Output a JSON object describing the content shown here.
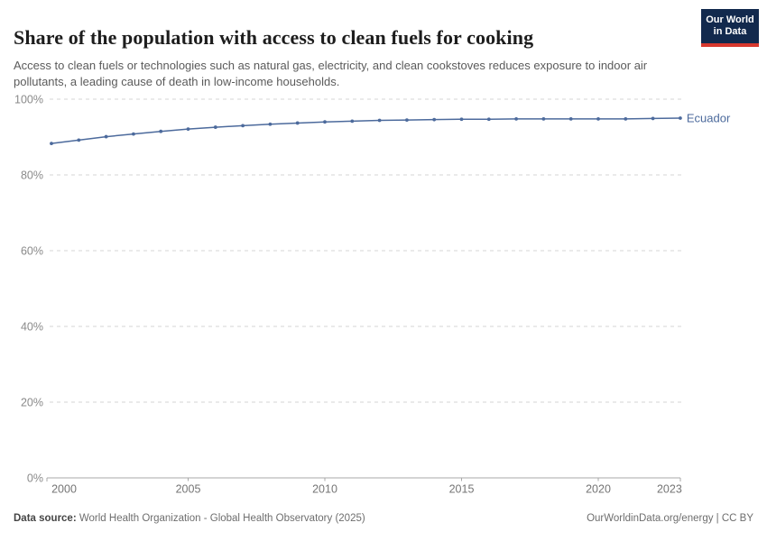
{
  "header": {
    "title": "Share of the population with access to clean fuels for cooking",
    "subtitle": "Access to clean fuels or technologies such as natural gas, electricity, and clean cookstoves reduces exposure to indoor air pollutants, a leading cause of death in low-income households.",
    "logo": {
      "line1": "Our World",
      "line2": "in Data"
    }
  },
  "chart_data": {
    "type": "line",
    "title": "Share of the population with access to clean fuels for cooking",
    "x": [
      2000,
      2001,
      2002,
      2003,
      2004,
      2005,
      2006,
      2007,
      2008,
      2009,
      2010,
      2011,
      2012,
      2013,
      2014,
      2015,
      2016,
      2017,
      2018,
      2019,
      2020,
      2021,
      2022,
      2023
    ],
    "series": [
      {
        "name": "Ecuador",
        "color": "#4c6a9c",
        "values": [
          88.3,
          89.2,
          90.1,
          90.8,
          91.5,
          92.1,
          92.6,
          93.0,
          93.4,
          93.7,
          94.0,
          94.2,
          94.4,
          94.5,
          94.6,
          94.7,
          94.7,
          94.8,
          94.8,
          94.8,
          94.8,
          94.8,
          94.9,
          95.0
        ]
      }
    ],
    "unit": "%",
    "ylim": [
      0,
      100
    ],
    "yticks": [
      0,
      20,
      40,
      60,
      80,
      100
    ],
    "xticks": [
      2000,
      2005,
      2010,
      2015,
      2020,
      2023
    ],
    "grid": "horizontal-dashed",
    "legend_position": "end-of-line-label"
  },
  "footer": {
    "datasource_label": "Data source:",
    "datasource_text": " World Health Organization - Global Health Observatory (2025)",
    "credit": "OurWorldinData.org/energy | CC BY"
  },
  "colors": {
    "line": "#4c6a9c",
    "grid": "#d6d6d6",
    "axis": "#a8a8a8",
    "tick_label": "#8a8a8a",
    "x_label": "#757575",
    "logo_bg": "#12294d",
    "logo_bar": "#d7382e"
  }
}
